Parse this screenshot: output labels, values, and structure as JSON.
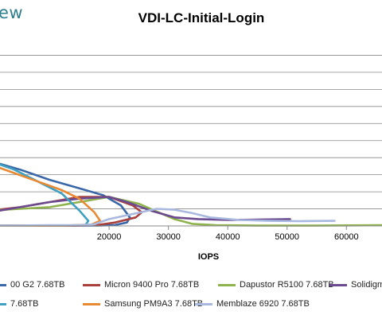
{
  "brand": "ew",
  "chart_data": {
    "type": "line",
    "title": "VDI-LC-Initial-Login",
    "xlabel": "IOPS",
    "ylabel": "",
    "xlim": [
      0,
      66000
    ],
    "ylim": [
      0,
      1.1
    ],
    "x_ticks": [
      "20000",
      "30000",
      "40000",
      "50000",
      "60000"
    ],
    "x_tick_values": [
      20000,
      30000,
      40000,
      50000,
      60000
    ],
    "y_gridlines": [
      0.1,
      0.2,
      0.3,
      0.4,
      0.5,
      0.6,
      0.7,
      0.8,
      0.9,
      1.0
    ],
    "grid": true,
    "series": [
      {
        "name": "00 G2 7.68TB",
        "legend_label": "00 G2 7.68TB",
        "color": "#3a67a8",
        "x": [
          0,
          5000,
          10000,
          15000,
          19000,
          22000,
          23500,
          23000,
          21000,
          18000,
          14000,
          10000,
          5000,
          0
        ],
        "y": [
          0.38,
          0.33,
          0.27,
          0.22,
          0.18,
          0.12,
          0.05,
          0.02,
          0.005,
          0.002,
          0.002,
          0.002,
          0.002,
          0.002
        ]
      },
      {
        "name": "Micron 9400 Pro 7.68TB",
        "legend_label": "Micron 9400 Pro 7.68TB",
        "color": "#a8403e",
        "x": [
          0,
          5000,
          10000,
          15000,
          20000,
          24000,
          25500,
          24500,
          21000,
          18000,
          14000,
          10000,
          5000,
          0
        ],
        "y": [
          0.09,
          0.11,
          0.14,
          0.17,
          0.17,
          0.12,
          0.08,
          0.05,
          0.02,
          0.005,
          0.002,
          0.002,
          0.002,
          0.002
        ]
      },
      {
        "name": "Dapustor R5100 7.68TB",
        "legend_label": "Dapustor R5100 7.68TB",
        "color": "#8fb34c",
        "x": [
          0,
          5000,
          10000,
          15000,
          20000,
          25000,
          28000,
          31000,
          34000,
          38000,
          45000,
          55000,
          66000
        ],
        "y": [
          0.09,
          0.1,
          0.11,
          0.14,
          0.17,
          0.13,
          0.085,
          0.04,
          0.012,
          0.004,
          0.002,
          0.002,
          0.004
        ]
      },
      {
        "name": "Solidigm",
        "legend_label": "Solidigm",
        "color": "#6b4a8f",
        "x": [
          0,
          5000,
          10000,
          15000,
          20000,
          23000,
          27000,
          31000,
          35000,
          40000,
          45000,
          50500
        ],
        "y": [
          0.08,
          0.11,
          0.14,
          0.16,
          0.17,
          0.14,
          0.09,
          0.05,
          0.04,
          0.035,
          0.037,
          0.04
        ]
      },
      {
        "name": "7.68TB",
        "legend_label": "7.68TB",
        "color": "#3fa0c2",
        "x": [
          0,
          4000,
          8000,
          12000,
          15000,
          16500,
          16000,
          12000,
          6000,
          0
        ],
        "y": [
          0.38,
          0.33,
          0.26,
          0.19,
          0.09,
          0.03,
          0.005,
          0.002,
          0.002,
          0.002
        ]
      },
      {
        "name": "Samsung PM9A3 7.68TB",
        "legend_label": "Samsung PM9A3 7.68TB",
        "color": "#e88a34",
        "x": [
          0,
          4000,
          8000,
          12000,
          15000,
          17500,
          18500,
          17000,
          13000,
          8000,
          3000,
          0
        ],
        "y": [
          0.36,
          0.31,
          0.26,
          0.21,
          0.16,
          0.08,
          0.03,
          0.008,
          0.003,
          0.002,
          0.002,
          0.002
        ]
      },
      {
        "name": "Memblaze 6920 7.68TB",
        "legend_label": "Memblaze 6920 7.68TB",
        "color": "#a9b8df",
        "x": [
          0,
          5000,
          10000,
          15000,
          17500,
          20000,
          24000,
          28000,
          31000,
          34000,
          37000,
          42000,
          47000,
          52000,
          58000
        ],
        "y": [
          0.002,
          0.003,
          0.004,
          0.005,
          0.01,
          0.04,
          0.07,
          0.1,
          0.095,
          0.075,
          0.05,
          0.035,
          0.03,
          0.028,
          0.03
        ]
      }
    ]
  }
}
